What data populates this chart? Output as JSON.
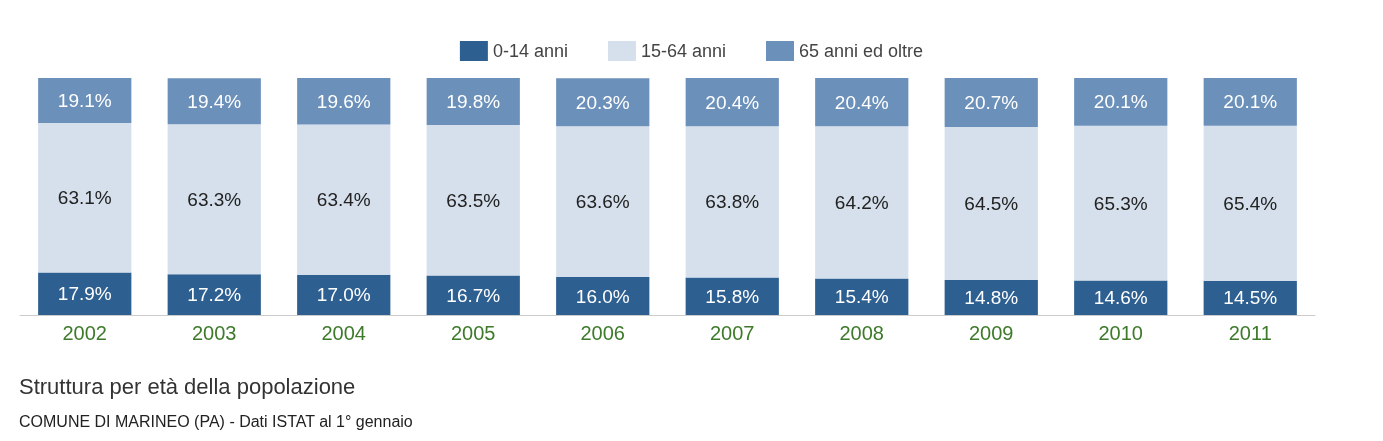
{
  "chart_data": {
    "type": "bar",
    "stacked": true,
    "title": "Struttura per età della popolazione",
    "annotations": [
      "COMUNE DI MARINEO (PA) - Dati ISTAT al 1° gennaio"
    ],
    "categories": [
      "2002",
      "2003",
      "2004",
      "2005",
      "2006",
      "2007",
      "2008",
      "2009",
      "2010",
      "2011"
    ],
    "series": [
      {
        "name": "0-14 anni",
        "color": "#2d5f91",
        "values": [
          17.9,
          17.2,
          17.0,
          16.7,
          16.0,
          15.8,
          15.4,
          14.8,
          14.6,
          14.5
        ],
        "value_labels": [
          "17.9%",
          "17.2%",
          "17.0%",
          "16.7%",
          "16.0%",
          "15.8%",
          "15.4%",
          "14.8%",
          "14.6%",
          "14.5%"
        ]
      },
      {
        "name": "15-64 anni",
        "color": "#d5e0ec",
        "values": [
          63.1,
          63.3,
          63.4,
          63.5,
          63.6,
          63.8,
          64.2,
          64.5,
          65.3,
          65.4
        ],
        "value_labels": [
          "63.1%",
          "63.3%",
          "63.4%",
          "63.5%",
          "63.6%",
          "63.8%",
          "64.2%",
          "64.5%",
          "65.3%",
          "65.4%"
        ]
      },
      {
        "name": "65 anni ed oltre",
        "color": "#6b90ba",
        "values": [
          19.1,
          19.4,
          19.6,
          19.8,
          20.3,
          20.4,
          20.4,
          20.7,
          20.1,
          20.1
        ],
        "value_labels": [
          "19.1%",
          "19.4%",
          "19.6%",
          "19.8%",
          "20.3%",
          "20.4%",
          "20.4%",
          "20.7%",
          "20.1%",
          "20.1%"
        ]
      }
    ],
    "ylim": [
      0,
      100
    ],
    "tick_labels": "x",
    "legend": "top",
    "grid": false
  }
}
